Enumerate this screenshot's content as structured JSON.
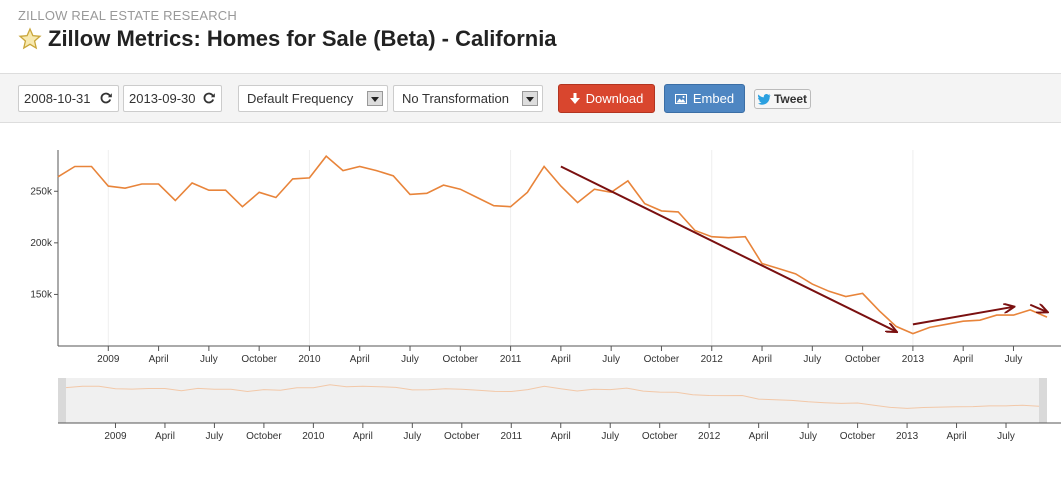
{
  "header": {
    "research_label": "ZILLOW REAL ESTATE RESEARCH",
    "title": "Zillow Metrics: Homes for Sale (Beta) - California",
    "star_icon": "star-icon"
  },
  "toolbar": {
    "start_date": "2008-10-31",
    "end_date": "2013-09-30",
    "frequency": "Default Frequency",
    "transformation": "No Transformation",
    "download_label": "Download",
    "embed_label": "Embed",
    "tweet_label": "Tweet"
  },
  "colors": {
    "series": "#e8843a",
    "annotation_arrow": "#7a1010",
    "download": "#d9462e",
    "embed": "#4e86c2"
  },
  "chart_data": {
    "type": "line",
    "x_start": "2008-10",
    "x_end": "2013-09",
    "ylim": [
      100000,
      290000
    ],
    "y_ticks": [
      {
        "label": "250k",
        "value": 250000
      },
      {
        "label": "200k",
        "value": 200000
      },
      {
        "label": "150k",
        "value": 150000
      }
    ],
    "x_ticks": [
      {
        "label": "2009",
        "date": "2009-01"
      },
      {
        "label": "April",
        "date": "2009-04"
      },
      {
        "label": "July",
        "date": "2009-07"
      },
      {
        "label": "October",
        "date": "2009-10"
      },
      {
        "label": "2010",
        "date": "2010-01"
      },
      {
        "label": "April",
        "date": "2010-04"
      },
      {
        "label": "July",
        "date": "2010-07"
      },
      {
        "label": "October",
        "date": "2010-10"
      },
      {
        "label": "2011",
        "date": "2011-01"
      },
      {
        "label": "April",
        "date": "2011-04"
      },
      {
        "label": "July",
        "date": "2011-07"
      },
      {
        "label": "October",
        "date": "2011-10"
      },
      {
        "label": "2012",
        "date": "2012-01"
      },
      {
        "label": "April",
        "date": "2012-04"
      },
      {
        "label": "July",
        "date": "2012-07"
      },
      {
        "label": "October",
        "date": "2012-10"
      },
      {
        "label": "2013",
        "date": "2013-01"
      },
      {
        "label": "April",
        "date": "2013-04"
      },
      {
        "label": "July",
        "date": "2013-07"
      }
    ],
    "series": [
      {
        "color": "#e8843a",
        "x": [
          "2008-10",
          "2008-11",
          "2008-12",
          "2009-01",
          "2009-02",
          "2009-03",
          "2009-04",
          "2009-05",
          "2009-06",
          "2009-07",
          "2009-08",
          "2009-09",
          "2009-10",
          "2009-11",
          "2009-12",
          "2010-01",
          "2010-02",
          "2010-03",
          "2010-04",
          "2010-05",
          "2010-06",
          "2010-07",
          "2010-08",
          "2010-09",
          "2010-10",
          "2010-11",
          "2010-12",
          "2011-01",
          "2011-02",
          "2011-03",
          "2011-04",
          "2011-05",
          "2011-06",
          "2011-07",
          "2011-08",
          "2011-09",
          "2011-10",
          "2011-11",
          "2011-12",
          "2012-01",
          "2012-02",
          "2012-03",
          "2012-04",
          "2012-05",
          "2012-06",
          "2012-07",
          "2012-08",
          "2012-09",
          "2012-10",
          "2012-11",
          "2012-12",
          "2013-01",
          "2013-02",
          "2013-03",
          "2013-04",
          "2013-05",
          "2013-06",
          "2013-07",
          "2013-08",
          "2013-09"
        ],
        "values": [
          264000,
          274000,
          274000,
          255000,
          253000,
          257000,
          257000,
          241000,
          258000,
          251000,
          251000,
          235000,
          249000,
          244000,
          262000,
          263000,
          284000,
          270000,
          274000,
          270000,
          265000,
          247000,
          248000,
          256000,
          252000,
          244000,
          236000,
          235000,
          249000,
          274000,
          255000,
          239000,
          252000,
          249000,
          260000,
          238000,
          231000,
          230000,
          212000,
          206000,
          205000,
          206000,
          180000,
          175000,
          170000,
          160000,
          153000,
          148000,
          151000,
          134000,
          119000,
          112000,
          118000,
          121000,
          124000,
          125000,
          130000,
          130000,
          135000,
          128000
        ]
      }
    ],
    "annotations": [
      {
        "type": "arrow",
        "from": {
          "date": "2011-04",
          "value": 274000
        },
        "to": {
          "date": "2012-12",
          "value": 114000
        }
      },
      {
        "type": "arrow",
        "from": {
          "date": "2013-01",
          "value": 121000
        },
        "to": {
          "date": "2013-07",
          "value": 138000
        }
      },
      {
        "type": "arrow",
        "from": {
          "date": "2013-08",
          "value": 140000
        },
        "to": {
          "date": "2013-09",
          "value": 133000
        }
      }
    ]
  }
}
